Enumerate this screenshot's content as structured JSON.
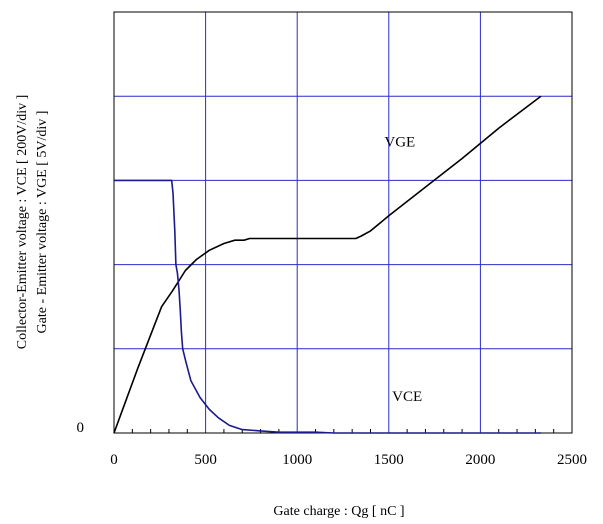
{
  "chart_data": {
    "type": "line",
    "xlabel": "Gate charge  :  Qg  [ nC ]",
    "ylabel_line1": "Collector-Emitter voltage : VCE [ 200V/div ]",
    "ylabel_line2": "Gate - Emitter voltage  :  VGE       [ 5V/div ]",
    "xlim": [
      0,
      2500
    ],
    "ylim_divisions": [
      0,
      5
    ],
    "x_ticks": [
      0,
      500,
      1000,
      1500,
      2000,
      2500
    ],
    "y_tick_labels": [
      {
        "value": 0,
        "label": "0"
      }
    ],
    "grid": true,
    "grid_color": "#2b2bc8",
    "annotations": [
      {
        "text": "VGE",
        "x": 1560,
        "y_div": 3.4
      },
      {
        "text": "VCE",
        "x": 1600,
        "y_div": 0.38
      }
    ],
    "series": [
      {
        "name": "VGE",
        "color": "#000000",
        "points": [
          [
            0,
            0
          ],
          [
            130,
            0.77
          ],
          [
            260,
            1.5
          ],
          [
            320,
            1.69
          ],
          [
            390,
            1.93
          ],
          [
            450,
            2.06
          ],
          [
            520,
            2.17
          ],
          [
            600,
            2.25
          ],
          [
            660,
            2.29
          ],
          [
            710,
            2.29
          ],
          [
            740,
            2.31
          ],
          [
            800,
            2.31
          ],
          [
            1000,
            2.31
          ],
          [
            1200,
            2.31
          ],
          [
            1320,
            2.31
          ],
          [
            1350,
            2.34
          ],
          [
            1400,
            2.4
          ],
          [
            1500,
            2.58
          ],
          [
            1700,
            2.92
          ],
          [
            1900,
            3.26
          ],
          [
            2100,
            3.62
          ],
          [
            2330,
            4.0
          ]
        ]
      },
      {
        "name": "VCE",
        "color": "#1a1a8c",
        "points": [
          [
            0,
            3.0
          ],
          [
            100,
            3.0
          ],
          [
            200,
            3.0
          ],
          [
            315,
            3.0
          ],
          [
            322,
            2.85
          ],
          [
            332,
            2.4
          ],
          [
            338,
            2.0
          ],
          [
            346,
            1.9
          ],
          [
            355,
            1.7
          ],
          [
            362,
            1.45
          ],
          [
            368,
            1.2
          ],
          [
            375,
            1.0
          ],
          [
            392,
            0.85
          ],
          [
            420,
            0.62
          ],
          [
            470,
            0.42
          ],
          [
            520,
            0.28
          ],
          [
            570,
            0.18
          ],
          [
            630,
            0.09
          ],
          [
            700,
            0.04
          ],
          [
            800,
            0.025
          ],
          [
            900,
            0.01
          ],
          [
            1000,
            0.01
          ],
          [
            1100,
            0.01
          ],
          [
            1200,
            0.0
          ],
          [
            1500,
            0.0
          ],
          [
            2000,
            0.0
          ],
          [
            2330,
            0.0
          ]
        ]
      }
    ]
  }
}
